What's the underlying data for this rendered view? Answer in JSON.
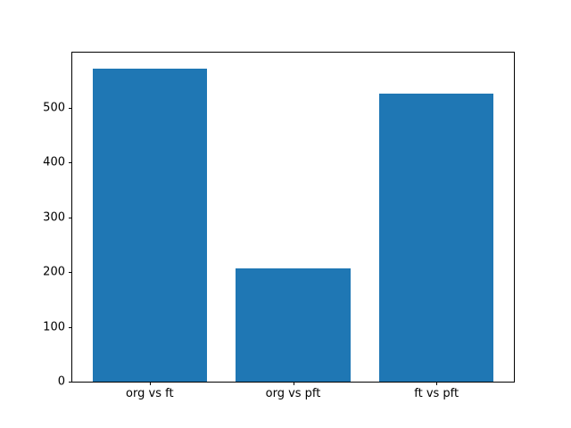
{
  "chart_data": {
    "type": "bar",
    "title": "",
    "xlabel": "",
    "ylabel": "",
    "categories": [
      "org vs ft",
      "org vs pft",
      "ft vs pft"
    ],
    "values": [
      570,
      207,
      525
    ],
    "ylim": [
      0,
      600
    ],
    "yticks": [
      0,
      100,
      200,
      300,
      400,
      500
    ],
    "bar_color": "#1f77b4",
    "axis_color": "#000000",
    "background_color": "#ffffff",
    "grid": false,
    "legend_position": "none"
  }
}
